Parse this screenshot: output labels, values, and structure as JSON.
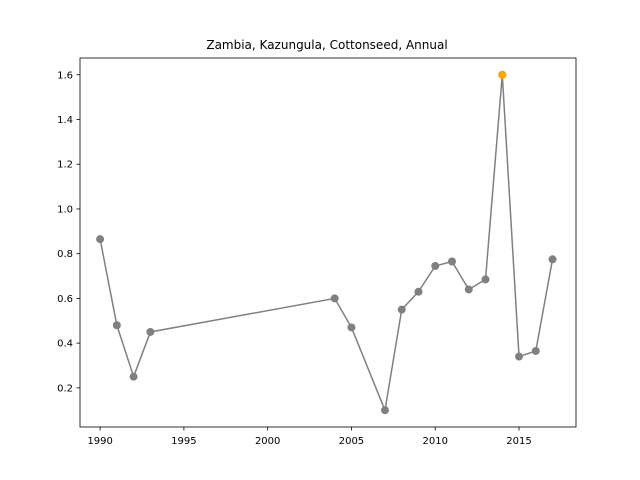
{
  "chart_data": {
    "type": "line",
    "title": "Zambia, Kazungula, Cottonseed, Annual",
    "xlabel": "",
    "ylabel": "",
    "xlim": [
      1988.8,
      2018.4
    ],
    "ylim": [
      0.025,
      1.675
    ],
    "x_ticks": [
      1990,
      1995,
      2000,
      2005,
      2010,
      2015
    ],
    "y_ticks": [
      0.2,
      0.4,
      0.6,
      0.8,
      1.0,
      1.2,
      1.4,
      1.6
    ],
    "grid": false,
    "legend": "none",
    "series": [
      {
        "color": "#808080",
        "x": [
          1990,
          1991,
          1992,
          1993,
          2004,
          2005,
          2007,
          2008,
          2009,
          2010,
          2011,
          2012,
          2013,
          2014,
          2015,
          2016,
          2017
        ],
        "y": [
          0.865,
          0.48,
          0.25,
          0.45,
          0.6,
          0.47,
          0.1,
          0.55,
          0.63,
          0.745,
          0.765,
          0.64,
          0.685,
          1.6,
          0.34,
          0.365,
          0.775
        ]
      }
    ],
    "highlight": {
      "x": 2014,
      "y": 1.6,
      "color": "#ffa500"
    }
  }
}
